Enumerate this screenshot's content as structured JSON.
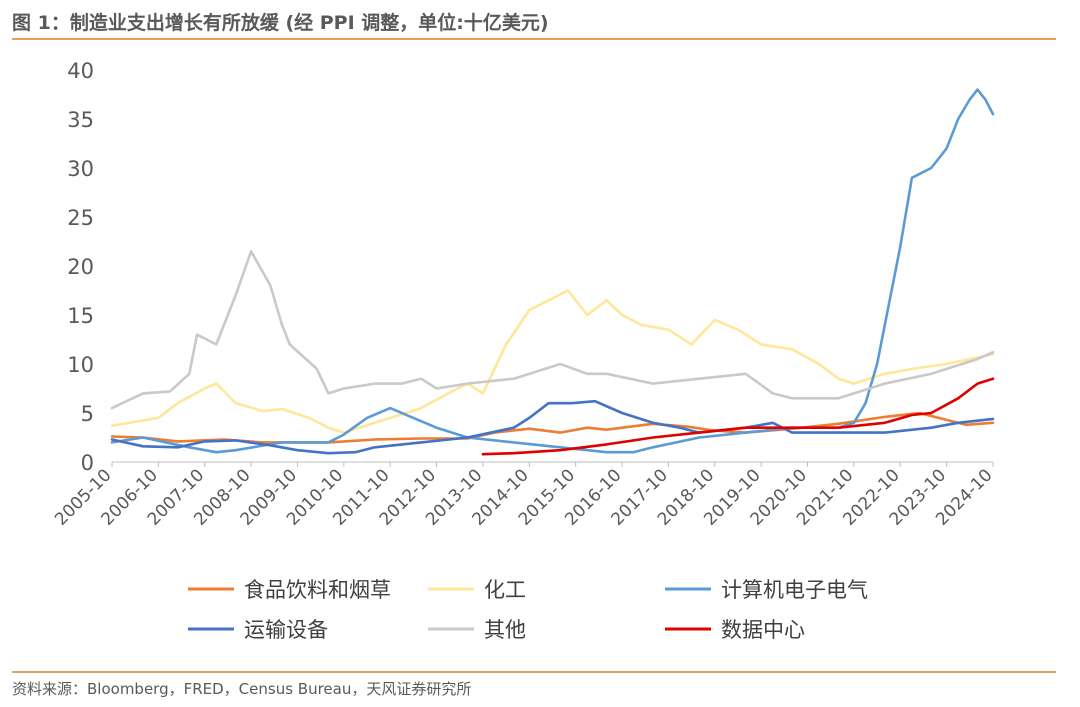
{
  "header": {
    "title": "图 1：制造业支出增长有所放缓 (经 PPI 调整，单位:十亿美元)"
  },
  "footer": {
    "source": "资料来源：Bloomberg，FRED，Census Bureau，天风证券研究所"
  },
  "chart_data": {
    "type": "line",
    "title": "图 1：制造业支出增长有所放缓 (经 PPI 调整，单位:十亿美元)",
    "xlabel": "",
    "ylabel": "",
    "ylim": [
      0,
      40
    ],
    "yticks": [
      0,
      5,
      10,
      15,
      20,
      25,
      30,
      35,
      40
    ],
    "xticks": [
      "2005-10",
      "2006-10",
      "2007-10",
      "2008-10",
      "2009-10",
      "2010-10",
      "2011-10",
      "2012-10",
      "2013-10",
      "2014-10",
      "2015-10",
      "2016-10",
      "2017-10",
      "2018-10",
      "2019-10",
      "2020-10",
      "2021-10",
      "2022-10",
      "2023-10",
      "2024-10"
    ],
    "grid": false,
    "legend_position": "bottom",
    "series": [
      {
        "name": "食品饮料和烟草",
        "color": "#ed7d31",
        "points": [
          [
            "2005-10",
            2.6
          ],
          [
            "2006-06",
            2.5
          ],
          [
            "2007-03",
            2.1
          ],
          [
            "2008-03",
            2.3
          ],
          [
            "2009-01",
            2.0
          ],
          [
            "2010-06",
            2.0
          ],
          [
            "2011-06",
            2.3
          ],
          [
            "2012-06",
            2.4
          ],
          [
            "2013-06",
            2.4
          ],
          [
            "2014-01",
            3.0
          ],
          [
            "2014-10",
            3.4
          ],
          [
            "2015-06",
            3.0
          ],
          [
            "2016-01",
            3.5
          ],
          [
            "2016-06",
            3.3
          ],
          [
            "2017-06",
            3.9
          ],
          [
            "2018-03",
            3.6
          ],
          [
            "2018-10",
            3.2
          ],
          [
            "2019-06",
            3.0
          ],
          [
            "2020-06",
            3.4
          ],
          [
            "2021-06",
            3.9
          ],
          [
            "2022-06",
            4.6
          ],
          [
            "2023-03",
            5.0
          ],
          [
            "2023-10",
            4.3
          ],
          [
            "2024-03",
            3.8
          ],
          [
            "2024-10",
            4.0
          ]
        ]
      },
      {
        "name": "化工",
        "color": "#ffe699",
        "points": [
          [
            "2005-10",
            3.7
          ],
          [
            "2006-10",
            4.5
          ],
          [
            "2007-03",
            6.0
          ],
          [
            "2007-10",
            7.5
          ],
          [
            "2008-01",
            8.0
          ],
          [
            "2008-06",
            6.0
          ],
          [
            "2009-01",
            5.2
          ],
          [
            "2009-06",
            5.4
          ],
          [
            "2010-01",
            4.5
          ],
          [
            "2010-06",
            3.5
          ],
          [
            "2010-10",
            3.0
          ],
          [
            "2011-06",
            4.0
          ],
          [
            "2012-06",
            5.5
          ],
          [
            "2013-01",
            7.0
          ],
          [
            "2013-06",
            8.0
          ],
          [
            "2013-10",
            7.0
          ],
          [
            "2014-04",
            12.0
          ],
          [
            "2014-10",
            15.5
          ],
          [
            "2015-03",
            16.5
          ],
          [
            "2015-08",
            17.5
          ],
          [
            "2016-01",
            15.0
          ],
          [
            "2016-06",
            16.5
          ],
          [
            "2016-10",
            15.0
          ],
          [
            "2017-03",
            14.0
          ],
          [
            "2017-10",
            13.5
          ],
          [
            "2018-04",
            12.0
          ],
          [
            "2018-10",
            14.5
          ],
          [
            "2019-04",
            13.5
          ],
          [
            "2019-10",
            12.0
          ],
          [
            "2020-06",
            11.5
          ],
          [
            "2021-01",
            10.0
          ],
          [
            "2021-06",
            8.5
          ],
          [
            "2021-10",
            8.0
          ],
          [
            "2022-06",
            9.0
          ],
          [
            "2023-01",
            9.5
          ],
          [
            "2023-10",
            10.0
          ],
          [
            "2024-04",
            10.5
          ],
          [
            "2024-10",
            11.0
          ]
        ]
      },
      {
        "name": "计算机电子电气",
        "color": "#5b9bd5",
        "points": [
          [
            "2005-10",
            2.0
          ],
          [
            "2006-06",
            2.5
          ],
          [
            "2007-06",
            1.5
          ],
          [
            "2008-01",
            1.0
          ],
          [
            "2008-06",
            1.2
          ],
          [
            "2009-06",
            2.0
          ],
          [
            "2010-06",
            2.0
          ],
          [
            "2010-10",
            2.8
          ],
          [
            "2011-04",
            4.5
          ],
          [
            "2011-10",
            5.5
          ],
          [
            "2012-04",
            4.5
          ],
          [
            "2012-10",
            3.5
          ],
          [
            "2013-06",
            2.5
          ],
          [
            "2014-06",
            2.0
          ],
          [
            "2015-06",
            1.5
          ],
          [
            "2016-06",
            1.0
          ],
          [
            "2017-01",
            1.0
          ],
          [
            "2017-06",
            1.5
          ],
          [
            "2018-06",
            2.5
          ],
          [
            "2019-06",
            3.0
          ],
          [
            "2020-06",
            3.5
          ],
          [
            "2021-06",
            3.5
          ],
          [
            "2021-10",
            4.0
          ],
          [
            "2022-01",
            6.0
          ],
          [
            "2022-04",
            10.0
          ],
          [
            "2022-07",
            16.0
          ],
          [
            "2022-10",
            22.0
          ],
          [
            "2023-01",
            29.0
          ],
          [
            "2023-06",
            30.0
          ],
          [
            "2023-10",
            32.0
          ],
          [
            "2024-01",
            35.0
          ],
          [
            "2024-04",
            37.0
          ],
          [
            "2024-06",
            38.0
          ],
          [
            "2024-08",
            37.0
          ],
          [
            "2024-10",
            35.5
          ]
        ]
      },
      {
        "name": "运输设备",
        "color": "#4472c4",
        "points": [
          [
            "2005-10",
            2.3
          ],
          [
            "2006-06",
            1.6
          ],
          [
            "2007-03",
            1.5
          ],
          [
            "2007-10",
            2.1
          ],
          [
            "2008-06",
            2.2
          ],
          [
            "2009-03",
            1.7
          ],
          [
            "2009-10",
            1.2
          ],
          [
            "2010-06",
            0.9
          ],
          [
            "2011-01",
            1.0
          ],
          [
            "2011-06",
            1.5
          ],
          [
            "2012-06",
            2.0
          ],
          [
            "2013-06",
            2.5
          ],
          [
            "2014-06",
            3.5
          ],
          [
            "2014-10",
            4.5
          ],
          [
            "2015-03",
            6.0
          ],
          [
            "2015-09",
            6.0
          ],
          [
            "2016-03",
            6.2
          ],
          [
            "2016-10",
            5.0
          ],
          [
            "2017-06",
            4.0
          ],
          [
            "2018-01",
            3.5
          ],
          [
            "2018-06",
            3.0
          ],
          [
            "2019-06",
            3.5
          ],
          [
            "2020-01",
            4.0
          ],
          [
            "2020-06",
            3.0
          ],
          [
            "2021-01",
            3.0
          ],
          [
            "2021-06",
            3.0
          ],
          [
            "2022-06",
            3.0
          ],
          [
            "2023-06",
            3.5
          ],
          [
            "2024-01",
            4.0
          ],
          [
            "2024-10",
            4.4
          ]
        ]
      },
      {
        "name": "其他",
        "color": "#c9c9c9",
        "points": [
          [
            "2005-10",
            5.5
          ],
          [
            "2006-06",
            7.0
          ],
          [
            "2007-01",
            7.2
          ],
          [
            "2007-06",
            9.0
          ],
          [
            "2007-08",
            13.0
          ],
          [
            "2008-01",
            12.0
          ],
          [
            "2008-06",
            17.0
          ],
          [
            "2008-10",
            21.5
          ],
          [
            "2009-03",
            18.0
          ],
          [
            "2009-06",
            14.0
          ],
          [
            "2009-08",
            12.0
          ],
          [
            "2010-03",
            9.5
          ],
          [
            "2010-06",
            7.0
          ],
          [
            "2010-10",
            7.5
          ],
          [
            "2011-06",
            8.0
          ],
          [
            "2012-01",
            8.0
          ],
          [
            "2012-06",
            8.5
          ],
          [
            "2012-10",
            7.5
          ],
          [
            "2013-06",
            8.0
          ],
          [
            "2014-06",
            8.5
          ],
          [
            "2015-06",
            10.0
          ],
          [
            "2016-01",
            9.0
          ],
          [
            "2016-06",
            9.0
          ],
          [
            "2017-06",
            8.0
          ],
          [
            "2018-06",
            8.5
          ],
          [
            "2019-06",
            9.0
          ],
          [
            "2020-01",
            7.0
          ],
          [
            "2020-06",
            6.5
          ],
          [
            "2021-06",
            6.5
          ],
          [
            "2022-06",
            8.0
          ],
          [
            "2023-06",
            9.0
          ],
          [
            "2024-06",
            10.5
          ],
          [
            "2024-10",
            11.2
          ]
        ]
      },
      {
        "name": "数据中心",
        "color": "#e00000",
        "points": [
          [
            "2013-10",
            0.8
          ],
          [
            "2014-06",
            0.9
          ],
          [
            "2015-06",
            1.2
          ],
          [
            "2016-06",
            1.8
          ],
          [
            "2017-06",
            2.5
          ],
          [
            "2018-06",
            3.0
          ],
          [
            "2019-06",
            3.5
          ],
          [
            "2020-06",
            3.5
          ],
          [
            "2021-06",
            3.5
          ],
          [
            "2022-06",
            4.0
          ],
          [
            "2023-01",
            4.8
          ],
          [
            "2023-06",
            5.0
          ],
          [
            "2024-01",
            6.5
          ],
          [
            "2024-06",
            8.0
          ],
          [
            "2024-10",
            8.5
          ]
        ]
      }
    ]
  }
}
